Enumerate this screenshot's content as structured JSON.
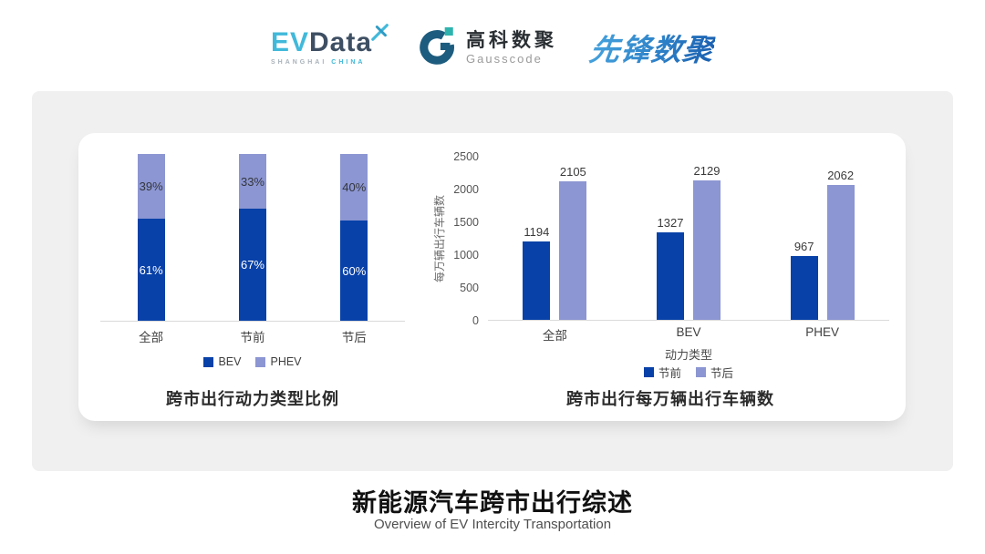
{
  "header": {
    "evdata": {
      "ev": "EV",
      "data": "Data",
      "sub_shanghai": "SHANGHAI",
      "sub_china": "CHINA",
      "accent_color": "#41B9DA",
      "dark_color": "#3E4F63"
    },
    "gausscode": {
      "cn": "高科数聚",
      "en": "Gausscode",
      "icon_color": "#1D5C7E",
      "accent_color": "#2FB3AE"
    },
    "xianfeng": {
      "text": "先锋数聚",
      "color": "#2E82C8"
    }
  },
  "chart_data": [
    {
      "type": "bar",
      "variant": "stacked-percent",
      "title": "跨市出行动力类型比例",
      "categories": [
        "全部",
        "节前",
        "节后"
      ],
      "series": [
        {
          "name": "BEV",
          "color": "#0841A8",
          "values": [
            61,
            67,
            60
          ],
          "labels": [
            "61%",
            "67%",
            "60%"
          ]
        },
        {
          "name": "PHEV",
          "color": "#8C96D2",
          "values": [
            39,
            33,
            40
          ],
          "labels": [
            "39%",
            "33%",
            "40%"
          ]
        }
      ],
      "ylim": [
        0,
        100
      ],
      "legend_position": "bottom",
      "grid": false
    },
    {
      "type": "bar",
      "variant": "grouped",
      "title": "跨市出行每万辆出行车辆数",
      "xlabel": "动力类型",
      "ylabel": "每万辆出行车辆数",
      "categories": [
        "全部",
        "BEV",
        "PHEV"
      ],
      "yticks": [
        0,
        500,
        1000,
        1500,
        2000,
        2500
      ],
      "ylim": [
        0,
        2500
      ],
      "series": [
        {
          "name": "节前",
          "color": "#0841A8",
          "values": [
            1194,
            1327,
            967
          ]
        },
        {
          "name": "节后",
          "color": "#8C96D2",
          "values": [
            2105,
            2129,
            2062
          ]
        }
      ],
      "legend_position": "bottom",
      "grid": false
    }
  ],
  "footer": {
    "title": "新能源汽车跨市出行综述",
    "subtitle": "Overview of EV Intercity Transportation"
  }
}
